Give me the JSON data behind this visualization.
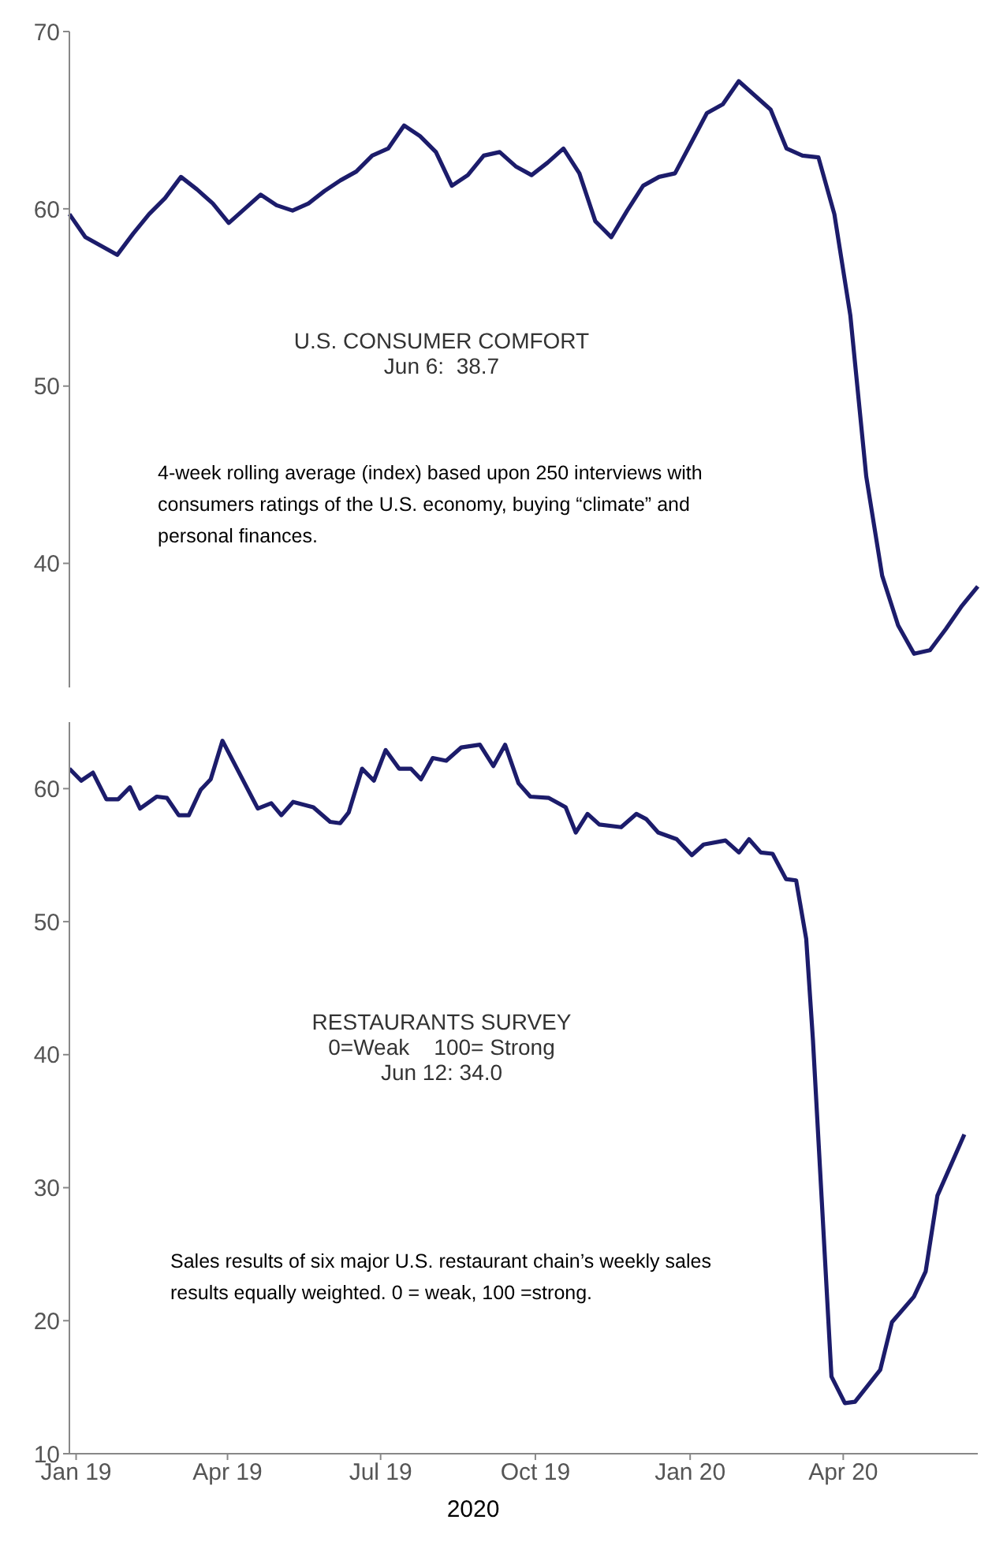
{
  "chart_data": [
    {
      "type": "line",
      "title": "U.S. CONSUMER COMFORT",
      "subtitle": "Jun 6:  38.7",
      "annotations": [
        "4-week rolling average (index) based upon 250 interviews with consumers ratings of the U.S. economy, buying “climate” and personal finances."
      ],
      "categories": [
        null,
        null,
        null,
        null,
        null,
        null,
        null,
        null,
        null,
        null,
        null,
        null,
        null,
        null,
        null,
        null,
        null,
        null,
        null,
        null,
        null,
        null,
        null,
        null,
        null,
        null,
        null,
        null,
        null,
        null,
        null,
        null,
        null,
        null,
        null,
        null,
        null,
        null,
        null,
        null,
        null,
        null,
        null,
        null,
        null,
        null,
        null,
        null,
        null,
        null,
        null,
        null,
        null,
        null,
        null,
        null,
        null,
        null
      ],
      "series": [
        {
          "color": "#1c1c6b",
          "values": [
            59.7,
            58.4,
            57.9,
            57.4,
            58.6,
            59.7,
            60.6,
            61.8,
            61.1,
            60.3,
            59.2,
            60.0,
            60.8,
            60.2,
            59.9,
            60.3,
            61.0,
            61.6,
            62.1,
            63.0,
            63.4,
            64.7,
            64.1,
            63.2,
            61.3,
            61.9,
            63.0,
            63.2,
            62.4,
            61.9,
            62.6,
            63.4,
            62.0,
            59.3,
            58.4,
            59.9,
            61.3,
            61.8,
            62.0,
            63.7,
            65.4,
            65.9,
            67.2,
            66.4,
            65.6,
            63.4,
            63.0,
            62.9,
            59.7,
            54.0,
            44.9,
            39.3,
            36.5,
            34.9,
            35.1,
            36.3,
            37.6,
            38.7
          ]
        }
      ],
      "ylim": [
        33,
        70
      ],
      "yticks": [
        40,
        50,
        60,
        70
      ],
      "tick_labels": "y",
      "grid": false,
      "legend": false,
      "marker": "none",
      "line_style": "solid"
    },
    {
      "type": "line",
      "title": "RESTAURANTS SURVEY",
      "subtitle": "0=Weak    100= Strong",
      "annotations": [
        "Jun 12: 34.0",
        "Sales results of six major U.S. restaurant chain’s weekly sales results equally weighted. 0 = weak, 100 =strong.",
        "2020"
      ],
      "series": [
        {
          "color": "#1c1c6b",
          "x": [
            "2018-12-28",
            "2019-01-04",
            "2019-01-11",
            "2019-01-19",
            "2019-01-26",
            "2019-02-02",
            "2019-02-08",
            "2019-02-18",
            "2019-02-24",
            "2019-03-03",
            "2019-03-09",
            "2019-03-16",
            "2019-03-22",
            "2019-03-29",
            "2019-04-19",
            "2019-04-27",
            "2019-05-03",
            "2019-05-10",
            "2019-05-22",
            "2019-06-01",
            "2019-06-07",
            "2019-06-12",
            "2019-06-20",
            "2019-06-27",
            "2019-07-04",
            "2019-07-12",
            "2019-07-19",
            "2019-07-25",
            "2019-08-01",
            "2019-08-09",
            "2019-08-18",
            "2019-08-29",
            "2019-09-06",
            "2019-09-13",
            "2019-09-21",
            "2019-09-28",
            "2019-10-09",
            "2019-10-19",
            "2019-10-25",
            "2019-11-01",
            "2019-11-08",
            "2019-11-21",
            "2019-11-30",
            "2019-12-06",
            "2019-12-13",
            "2019-12-24",
            "2020-01-02",
            "2020-01-09",
            "2020-01-22",
            "2020-01-30",
            "2020-02-05",
            "2020-02-12",
            "2020-02-19",
            "2020-02-27",
            "2020-03-04",
            "2020-03-10",
            "2020-03-14",
            "2020-03-25",
            "2020-04-02",
            "2020-04-08",
            "2020-04-23",
            "2020-04-30",
            "2020-05-13",
            "2020-05-20",
            "2020-05-27",
            "2020-06-12"
          ],
          "values": [
            61.5,
            60.6,
            61.2,
            59.2,
            59.2,
            60.1,
            58.5,
            59.4,
            59.3,
            58,
            58,
            59.9,
            60.7,
            63.6,
            58.5,
            58.9,
            58,
            59,
            58.6,
            57.5,
            57.4,
            58.2,
            61.5,
            60.6,
            62.9,
            61.5,
            61.5,
            60.7,
            62.3,
            62.1,
            63.1,
            63.3,
            61.7,
            63.3,
            60.4,
            59.4,
            59.3,
            58.6,
            56.7,
            58.1,
            57.3,
            57.1,
            58.1,
            57.7,
            56.7,
            56.2,
            55,
            55.8,
            56.1,
            55.2,
            56.2,
            55.2,
            55.1,
            53.2,
            53.1,
            48.7,
            41.1,
            15.8,
            13.8,
            13.9,
            16.3,
            19.9,
            21.8,
            23.7,
            29.4,
            34
          ]
        }
      ],
      "xlim": [
        "2018-12-28",
        "2020-06-20"
      ],
      "xticks": [
        {
          "value": "2019-01-01",
          "label": "Jan 19"
        },
        {
          "value": "2019-04-01",
          "label": "Apr 19"
        },
        {
          "value": "2019-07-01",
          "label": "Jul 19"
        },
        {
          "value": "2019-10-01",
          "label": "Oct 19"
        },
        {
          "value": "2020-01-01",
          "label": "Jan 20"
        },
        {
          "value": "2020-04-01",
          "label": "Apr 20"
        }
      ],
      "ylim": [
        10,
        65
      ],
      "yticks": [
        10,
        20,
        30,
        40,
        50,
        60
      ],
      "grid": false,
      "legend": false,
      "marker": "none",
      "line_style": "solid"
    }
  ]
}
